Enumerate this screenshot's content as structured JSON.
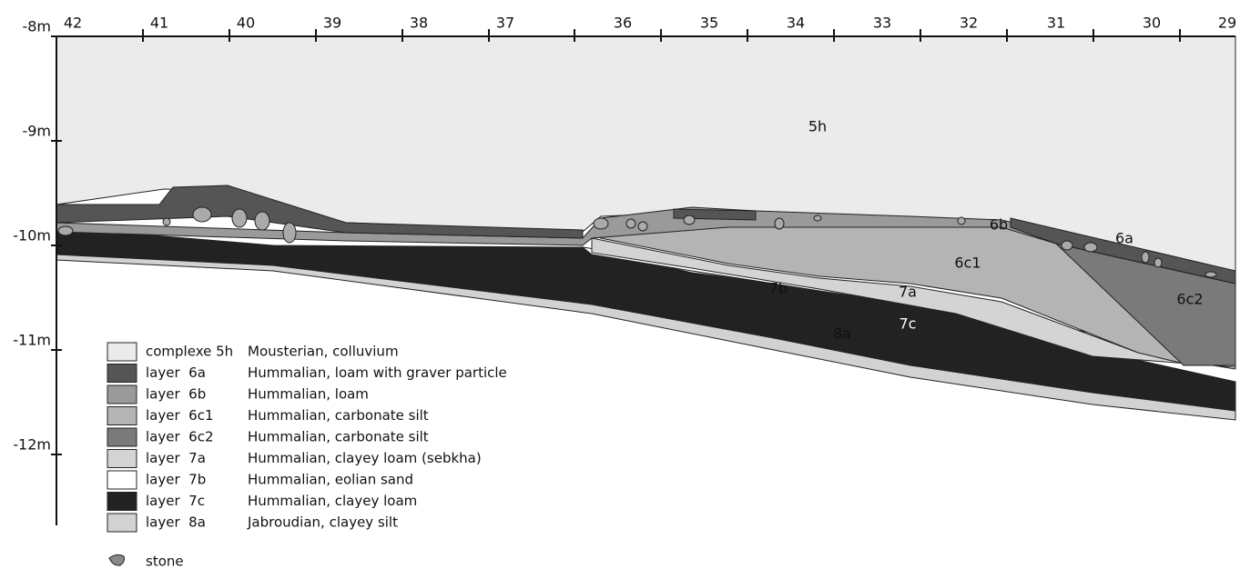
{
  "top_axis": {
    "labels": [
      "42",
      "41",
      "40",
      "39",
      "38",
      "37",
      "36",
      "35",
      "34",
      "33",
      "32",
      "31",
      "30",
      "29"
    ]
  },
  "depth_axis": {
    "labels": [
      "-8m",
      "-9m",
      "-10m",
      "-11m",
      "-12m"
    ]
  },
  "section_labels": {
    "l5h": "5h",
    "l6b": "6b",
    "l6a": "6a",
    "l6c1": "6c1",
    "l6c2": "6c2",
    "l7b": "7b",
    "l7a": "7a",
    "l7c": "7c",
    "l8a": "8a"
  },
  "legend": [
    {
      "name": "complexe 5h",
      "description": "Mousterian, colluvium"
    },
    {
      "name": "layer  6a",
      "description": "Hummalian, loam with graver particle"
    },
    {
      "name": "layer  6b",
      "description": "Hummalian, loam"
    },
    {
      "name": "layer  6c1",
      "description": "Hummalian, carbonate silt"
    },
    {
      "name": "layer  6c2",
      "description": "Hummalian, carbonate silt"
    },
    {
      "name": "layer  7a",
      "description": "Hummalian, clayey loam (sebkha)"
    },
    {
      "name": "layer  7b",
      "description": "Hummalian, eolian sand"
    },
    {
      "name": "layer  7c",
      "description": "Hummalian, clayey loam"
    },
    {
      "name": "layer  8a",
      "description": "Jabroudian, clayey silt"
    }
  ],
  "stone_label": "stone"
}
